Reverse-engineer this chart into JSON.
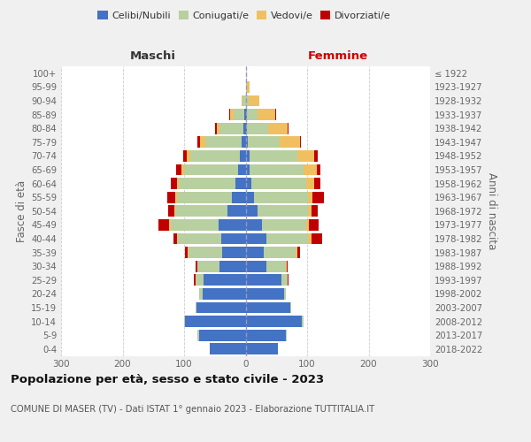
{
  "age_groups": [
    "0-4",
    "5-9",
    "10-14",
    "15-19",
    "20-24",
    "25-29",
    "30-34",
    "35-39",
    "40-44",
    "45-49",
    "50-54",
    "55-59",
    "60-64",
    "65-69",
    "70-74",
    "75-79",
    "80-84",
    "85-89",
    "90-94",
    "95-99",
    "100+"
  ],
  "birth_years": [
    "2018-2022",
    "2013-2017",
    "2008-2012",
    "2003-2007",
    "1998-2002",
    "1993-1997",
    "1988-1992",
    "1983-1987",
    "1978-1982",
    "1973-1977",
    "1968-1972",
    "1963-1967",
    "1958-1962",
    "1953-1957",
    "1948-1952",
    "1943-1947",
    "1938-1942",
    "1933-1937",
    "1928-1932",
    "1923-1927",
    "≤ 1922"
  ],
  "maschi_celibi": [
    58,
    76,
    98,
    80,
    70,
    68,
    42,
    38,
    40,
    44,
    30,
    22,
    16,
    12,
    10,
    6,
    4,
    2,
    0,
    0,
    0
  ],
  "maschi_coniugati": [
    0,
    2,
    2,
    2,
    5,
    14,
    36,
    55,
    70,
    78,
    84,
    90,
    92,
    88,
    80,
    60,
    38,
    18,
    5,
    0,
    0
  ],
  "maschi_vedovi": [
    0,
    0,
    0,
    0,
    0,
    0,
    0,
    1,
    2,
    2,
    2,
    2,
    3,
    5,
    6,
    8,
    5,
    5,
    2,
    0,
    0
  ],
  "maschi_divorziati": [
    0,
    0,
    0,
    0,
    0,
    2,
    3,
    5,
    5,
    18,
    10,
    14,
    10,
    8,
    6,
    5,
    2,
    2,
    0,
    0,
    0
  ],
  "femmine_nubili": [
    52,
    65,
    92,
    72,
    62,
    58,
    34,
    30,
    34,
    26,
    20,
    14,
    10,
    6,
    6,
    4,
    2,
    2,
    0,
    0,
    0
  ],
  "femmine_coniugate": [
    0,
    2,
    2,
    2,
    4,
    10,
    32,
    52,
    68,
    72,
    82,
    88,
    88,
    88,
    78,
    52,
    34,
    18,
    5,
    2,
    0
  ],
  "femmine_vedove": [
    0,
    0,
    0,
    0,
    0,
    0,
    1,
    2,
    5,
    5,
    5,
    7,
    14,
    22,
    28,
    32,
    32,
    28,
    18,
    5,
    0
  ],
  "femmine_divorziate": [
    0,
    0,
    0,
    0,
    0,
    2,
    2,
    5,
    18,
    16,
    10,
    18,
    10,
    5,
    5,
    2,
    2,
    2,
    0,
    0,
    0
  ],
  "colors": {
    "celibi": "#4472c4",
    "coniugati": "#b8cfa0",
    "vedovi": "#f0c060",
    "divorziati": "#c00000"
  },
  "xlim": 300,
  "title_main": "Popolazione per età, sesso e stato civile - 2023",
  "title_sub": "COMUNE DI MASER (TV) - Dati ISTAT 1° gennaio 2023 - Elaborazione TUTTITALIA.IT",
  "ylabel_left": "Fasce di età",
  "ylabel_right": "Anni di nascita",
  "xlabel_left": "Maschi",
  "xlabel_right": "Femmine",
  "bg_color": "#f0f0f0",
  "plot_bg": "#ffffff"
}
